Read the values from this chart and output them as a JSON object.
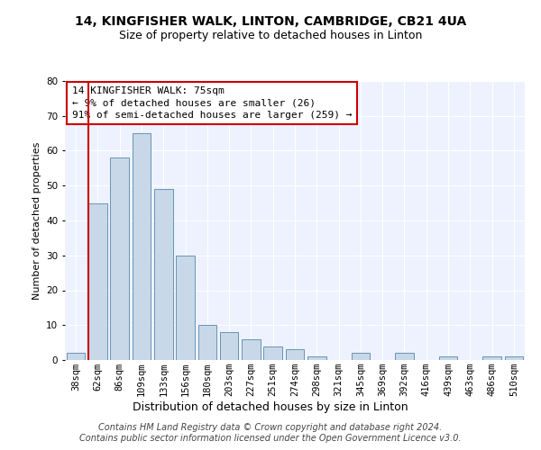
{
  "title1": "14, KINGFISHER WALK, LINTON, CAMBRIDGE, CB21 4UA",
  "title2": "Size of property relative to detached houses in Linton",
  "xlabel": "Distribution of detached houses by size in Linton",
  "ylabel": "Number of detached properties",
  "categories": [
    "38sqm",
    "62sqm",
    "86sqm",
    "109sqm",
    "133sqm",
    "156sqm",
    "180sqm",
    "203sqm",
    "227sqm",
    "251sqm",
    "274sqm",
    "298sqm",
    "321sqm",
    "345sqm",
    "369sqm",
    "392sqm",
    "416sqm",
    "439sqm",
    "463sqm",
    "486sqm",
    "510sqm"
  ],
  "values": [
    2,
    45,
    58,
    65,
    49,
    30,
    10,
    8,
    6,
    4,
    3,
    1,
    0,
    2,
    0,
    2,
    0,
    1,
    0,
    1,
    1
  ],
  "bar_color": "#c8d8e8",
  "bar_edge_color": "#5588aa",
  "vline_color": "#cc0000",
  "annotation_line1": "14 KINGFISHER WALK: 75sqm",
  "annotation_line2": "← 9% of detached houses are smaller (26)",
  "annotation_line3": "91% of semi-detached houses are larger (259) →",
  "annotation_box_color": "#ffffff",
  "annotation_box_edge": "#cc0000",
  "footnote1": "Contains HM Land Registry data © Crown copyright and database right 2024.",
  "footnote2": "Contains public sector information licensed under the Open Government Licence v3.0.",
  "ylim": [
    0,
    80
  ],
  "yticks": [
    0,
    10,
    20,
    30,
    40,
    50,
    60,
    70,
    80
  ],
  "background_color": "#eef2ff",
  "title1_fontsize": 10,
  "title2_fontsize": 9,
  "xlabel_fontsize": 9,
  "ylabel_fontsize": 8,
  "tick_fontsize": 7.5,
  "annotation_fontsize": 8,
  "footnote_fontsize": 7
}
